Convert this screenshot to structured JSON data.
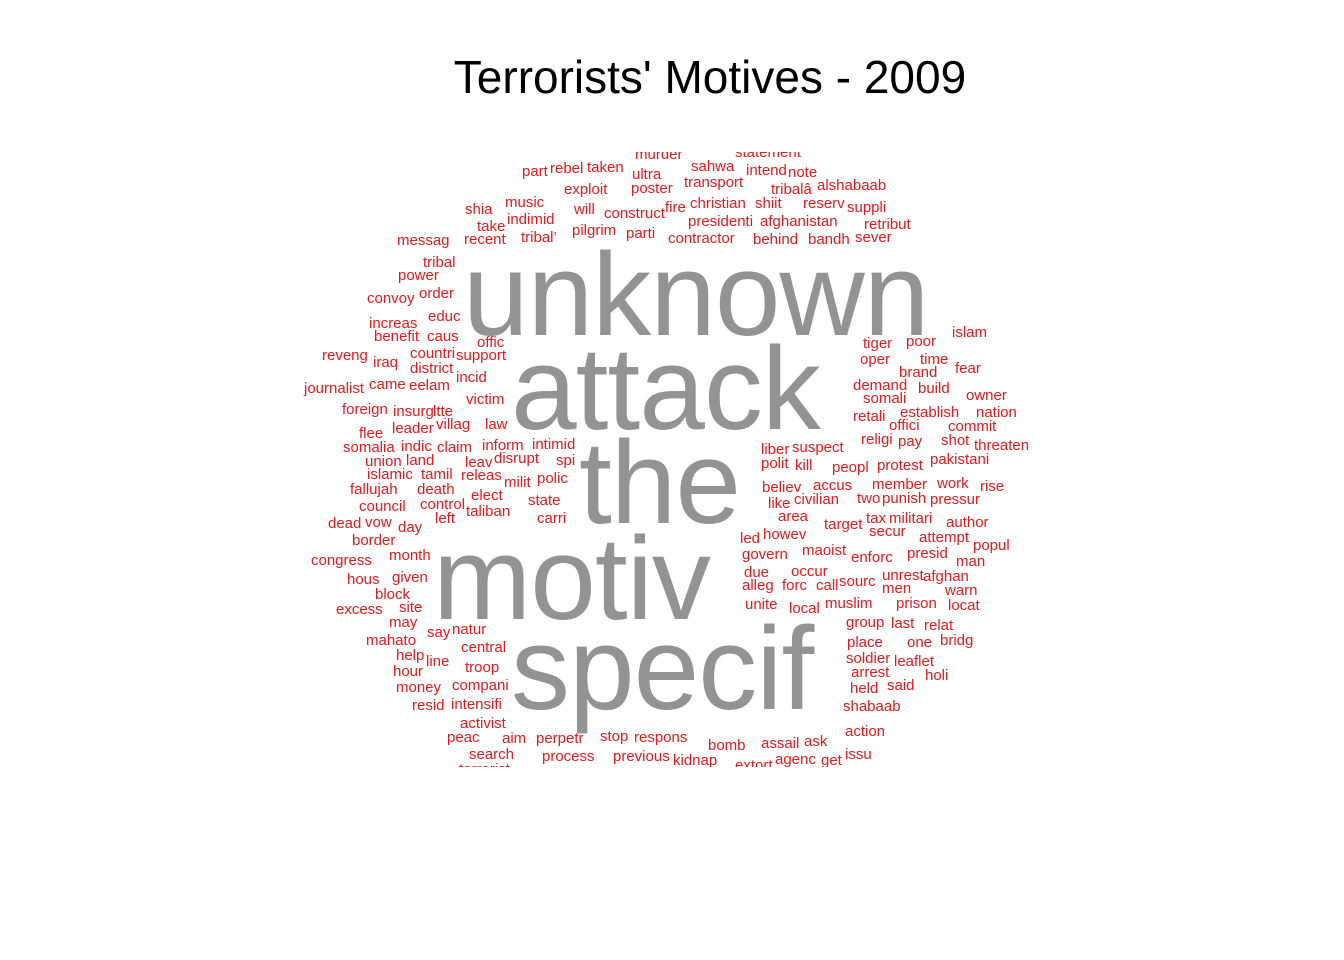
{
  "chart_data": {
    "type": "wordcloud",
    "title": "Terrorists' Motives - 2009",
    "colors": {
      "frequent": "#939393",
      "rare": "#e31a1c"
    },
    "words": [
      {
        "text": "unknown",
        "weight": 5
      },
      {
        "text": "attack",
        "weight": 5
      },
      {
        "text": "the",
        "weight": 5
      },
      {
        "text": "motiv",
        "weight": 5
      },
      {
        "text": "specif",
        "weight": 5
      },
      {
        "text": "murder",
        "weight": 1
      },
      {
        "text": "statement",
        "weight": 1
      },
      {
        "text": "part",
        "weight": 1
      },
      {
        "text": "rebel",
        "weight": 1
      },
      {
        "text": "taken",
        "weight": 1
      },
      {
        "text": "ultra",
        "weight": 1
      },
      {
        "text": "sahwa",
        "weight": 1
      },
      {
        "text": "intend",
        "weight": 1
      },
      {
        "text": "note",
        "weight": 1
      },
      {
        "text": "transport",
        "weight": 1
      },
      {
        "text": "tribalâ",
        "weight": 1
      },
      {
        "text": "alshabaab",
        "weight": 1
      },
      {
        "text": "exploit",
        "weight": 1
      },
      {
        "text": "poster",
        "weight": 1
      },
      {
        "text": "shia",
        "weight": 1
      },
      {
        "text": "music",
        "weight": 1
      },
      {
        "text": "will",
        "weight": 1
      },
      {
        "text": "construct",
        "weight": 1
      },
      {
        "text": "fire",
        "weight": 1
      },
      {
        "text": "christian",
        "weight": 1
      },
      {
        "text": "shiit",
        "weight": 1
      },
      {
        "text": "reserv",
        "weight": 1
      },
      {
        "text": "suppli",
        "weight": 1
      },
      {
        "text": "take",
        "weight": 1
      },
      {
        "text": "indimid",
        "weight": 1
      },
      {
        "text": "presidenti",
        "weight": 1
      },
      {
        "text": "afghanistan",
        "weight": 1
      },
      {
        "text": "retribut",
        "weight": 1
      },
      {
        "text": "messag",
        "weight": 1
      },
      {
        "text": "recent",
        "weight": 1
      },
      {
        "text": "tribal’",
        "weight": 1
      },
      {
        "text": "pilgrim",
        "weight": 1
      },
      {
        "text": "parti",
        "weight": 1
      },
      {
        "text": "contractor",
        "weight": 1
      },
      {
        "text": "behind",
        "weight": 1
      },
      {
        "text": "bandh",
        "weight": 1
      },
      {
        "text": "sever",
        "weight": 1
      },
      {
        "text": "tribal",
        "weight": 1
      },
      {
        "text": "power",
        "weight": 1
      },
      {
        "text": "convoy",
        "weight": 1
      },
      {
        "text": "order",
        "weight": 1
      },
      {
        "text": "increas",
        "weight": 1
      },
      {
        "text": "educ",
        "weight": 1
      },
      {
        "text": "benefit",
        "weight": 1
      },
      {
        "text": "caus",
        "weight": 1
      },
      {
        "text": "offic",
        "weight": 1
      },
      {
        "text": "reveng",
        "weight": 1
      },
      {
        "text": "iraq",
        "weight": 1
      },
      {
        "text": "countri",
        "weight": 1
      },
      {
        "text": "support",
        "weight": 1
      },
      {
        "text": "district",
        "weight": 1
      },
      {
        "text": "incid",
        "weight": 1
      },
      {
        "text": "journalist",
        "weight": 1
      },
      {
        "text": "came",
        "weight": 1
      },
      {
        "text": "eelam",
        "weight": 1
      },
      {
        "text": "victim",
        "weight": 1
      },
      {
        "text": "foreign",
        "weight": 1
      },
      {
        "text": "insurg",
        "weight": 1
      },
      {
        "text": "ltte",
        "weight": 1
      },
      {
        "text": "flee",
        "weight": 1
      },
      {
        "text": "leader",
        "weight": 1
      },
      {
        "text": "villag",
        "weight": 1
      },
      {
        "text": "law",
        "weight": 1
      },
      {
        "text": "somalia",
        "weight": 1
      },
      {
        "text": "indic",
        "weight": 1
      },
      {
        "text": "claim",
        "weight": 1
      },
      {
        "text": "inform",
        "weight": 1
      },
      {
        "text": "intimid",
        "weight": 1
      },
      {
        "text": "union",
        "weight": 1
      },
      {
        "text": "land",
        "weight": 1
      },
      {
        "text": "leav",
        "weight": 1
      },
      {
        "text": "disrupt",
        "weight": 1
      },
      {
        "text": "spi",
        "weight": 1
      },
      {
        "text": "islamic",
        "weight": 1
      },
      {
        "text": "tamil",
        "weight": 1
      },
      {
        "text": "releas",
        "weight": 1
      },
      {
        "text": "polic",
        "weight": 1
      },
      {
        "text": "fallujah",
        "weight": 1
      },
      {
        "text": "death",
        "weight": 1
      },
      {
        "text": "milit",
        "weight": 1
      },
      {
        "text": "elect",
        "weight": 1
      },
      {
        "text": "state",
        "weight": 1
      },
      {
        "text": "council",
        "weight": 1
      },
      {
        "text": "control",
        "weight": 1
      },
      {
        "text": "taliban",
        "weight": 1
      },
      {
        "text": "dead",
        "weight": 1
      },
      {
        "text": "vow",
        "weight": 1
      },
      {
        "text": "day",
        "weight": 1
      },
      {
        "text": "left",
        "weight": 1
      },
      {
        "text": "carri",
        "weight": 1
      },
      {
        "text": "border",
        "weight": 1
      },
      {
        "text": "congress",
        "weight": 1
      },
      {
        "text": "month",
        "weight": 1
      },
      {
        "text": "hous",
        "weight": 1
      },
      {
        "text": "given",
        "weight": 1
      },
      {
        "text": "block",
        "weight": 1
      },
      {
        "text": "excess",
        "weight": 1
      },
      {
        "text": "site",
        "weight": 1
      },
      {
        "text": "may",
        "weight": 1
      },
      {
        "text": "say",
        "weight": 1
      },
      {
        "text": "natur",
        "weight": 1
      },
      {
        "text": "mahato",
        "weight": 1
      },
      {
        "text": "central",
        "weight": 1
      },
      {
        "text": "help",
        "weight": 1
      },
      {
        "text": "line",
        "weight": 1
      },
      {
        "text": "troop",
        "weight": 1
      },
      {
        "text": "hour",
        "weight": 1
      },
      {
        "text": "money",
        "weight": 1
      },
      {
        "text": "compani",
        "weight": 1
      },
      {
        "text": "resid",
        "weight": 1
      },
      {
        "text": "intensifi",
        "weight": 1
      },
      {
        "text": "activist",
        "weight": 1
      },
      {
        "text": "peac",
        "weight": 1
      },
      {
        "text": "aim",
        "weight": 1
      },
      {
        "text": "perpetr",
        "weight": 1
      },
      {
        "text": "search",
        "weight": 1
      },
      {
        "text": "process",
        "weight": 1
      },
      {
        "text": "terrorist",
        "weight": 1
      },
      {
        "text": "stop",
        "weight": 1
      },
      {
        "text": "respons",
        "weight": 1
      },
      {
        "text": "previous",
        "weight": 1
      },
      {
        "text": "kidnap",
        "weight": 1
      },
      {
        "text": "bomb",
        "weight": 1
      },
      {
        "text": "assail",
        "weight": 1
      },
      {
        "text": "ask",
        "weight": 1
      },
      {
        "text": "action",
        "weight": 1
      },
      {
        "text": "extort",
        "weight": 1
      },
      {
        "text": "agenc",
        "weight": 1
      },
      {
        "text": "get",
        "weight": 1
      },
      {
        "text": "issu",
        "weight": 1
      },
      {
        "text": "islam",
        "weight": 1
      },
      {
        "text": "tiger",
        "weight": 1
      },
      {
        "text": "poor",
        "weight": 1
      },
      {
        "text": "oper",
        "weight": 1
      },
      {
        "text": "time",
        "weight": 1
      },
      {
        "text": "brand",
        "weight": 1
      },
      {
        "text": "fear",
        "weight": 1
      },
      {
        "text": "demand",
        "weight": 1
      },
      {
        "text": "build",
        "weight": 1
      },
      {
        "text": "owner",
        "weight": 1
      },
      {
        "text": "somali",
        "weight": 1
      },
      {
        "text": "retali",
        "weight": 1
      },
      {
        "text": "establish",
        "weight": 1
      },
      {
        "text": "nation",
        "weight": 1
      },
      {
        "text": "offici",
        "weight": 1
      },
      {
        "text": "commit",
        "weight": 1
      },
      {
        "text": "religi",
        "weight": 1
      },
      {
        "text": "pay",
        "weight": 1
      },
      {
        "text": "shot",
        "weight": 1
      },
      {
        "text": "threaten",
        "weight": 1
      },
      {
        "text": "liber",
        "weight": 1
      },
      {
        "text": "suspect",
        "weight": 1
      },
      {
        "text": "polit",
        "weight": 1
      },
      {
        "text": "kill",
        "weight": 1
      },
      {
        "text": "peopl",
        "weight": 1
      },
      {
        "text": "protest",
        "weight": 1
      },
      {
        "text": "pakistani",
        "weight": 1
      },
      {
        "text": "believ",
        "weight": 1
      },
      {
        "text": "accus",
        "weight": 1
      },
      {
        "text": "member",
        "weight": 1
      },
      {
        "text": "work",
        "weight": 1
      },
      {
        "text": "rise",
        "weight": 1
      },
      {
        "text": "like",
        "weight": 1
      },
      {
        "text": "civilian",
        "weight": 1
      },
      {
        "text": "two",
        "weight": 1
      },
      {
        "text": "punish",
        "weight": 1
      },
      {
        "text": "pressur",
        "weight": 1
      },
      {
        "text": "area",
        "weight": 1
      },
      {
        "text": "target",
        "weight": 1
      },
      {
        "text": "tax",
        "weight": 1
      },
      {
        "text": "militari",
        "weight": 1
      },
      {
        "text": "author",
        "weight": 1
      },
      {
        "text": "howev",
        "weight": 1
      },
      {
        "text": "secur",
        "weight": 1
      },
      {
        "text": "led",
        "weight": 1
      },
      {
        "text": "attempt",
        "weight": 1
      },
      {
        "text": "popul",
        "weight": 1
      },
      {
        "text": "maoist",
        "weight": 1
      },
      {
        "text": "govern",
        "weight": 1
      },
      {
        "text": "enforc",
        "weight": 1
      },
      {
        "text": "presid",
        "weight": 1
      },
      {
        "text": "man",
        "weight": 1
      },
      {
        "text": "due",
        "weight": 1
      },
      {
        "text": "occur",
        "weight": 1
      },
      {
        "text": "unrest",
        "weight": 1
      },
      {
        "text": "afghan",
        "weight": 1
      },
      {
        "text": "alleg",
        "weight": 1
      },
      {
        "text": "forc",
        "weight": 1
      },
      {
        "text": "call",
        "weight": 1
      },
      {
        "text": "sourc",
        "weight": 1
      },
      {
        "text": "men",
        "weight": 1
      },
      {
        "text": "warn",
        "weight": 1
      },
      {
        "text": "unite",
        "weight": 1
      },
      {
        "text": "local",
        "weight": 1
      },
      {
        "text": "muslim",
        "weight": 1
      },
      {
        "text": "prison",
        "weight": 1
      },
      {
        "text": "locat",
        "weight": 1
      },
      {
        "text": "group",
        "weight": 1
      },
      {
        "text": "last",
        "weight": 1
      },
      {
        "text": "relat",
        "weight": 1
      },
      {
        "text": "place",
        "weight": 1
      },
      {
        "text": "one",
        "weight": 1
      },
      {
        "text": "bridg",
        "weight": 1
      },
      {
        "text": "soldier",
        "weight": 1
      },
      {
        "text": "leaflet",
        "weight": 1
      },
      {
        "text": "arrest",
        "weight": 1
      },
      {
        "text": "holi",
        "weight": 1
      },
      {
        "text": "held",
        "weight": 1
      },
      {
        "text": "said",
        "weight": 1
      },
      {
        "text": "shabaab",
        "weight": 1
      }
    ]
  }
}
